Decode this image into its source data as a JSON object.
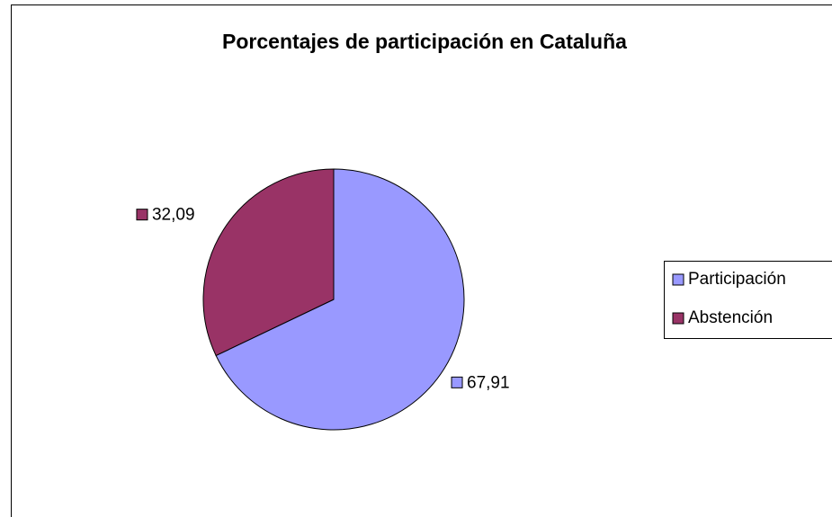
{
  "chart_data": {
    "type": "pie",
    "title": "Porcentajes de participación en Cataluña",
    "categories": [
      "Participación",
      "Abstención"
    ],
    "values": [
      67.91,
      32.09
    ],
    "value_labels": [
      "67,91",
      "32,09"
    ],
    "colors": [
      "#9999ff",
      "#993366"
    ],
    "legend": "right"
  }
}
